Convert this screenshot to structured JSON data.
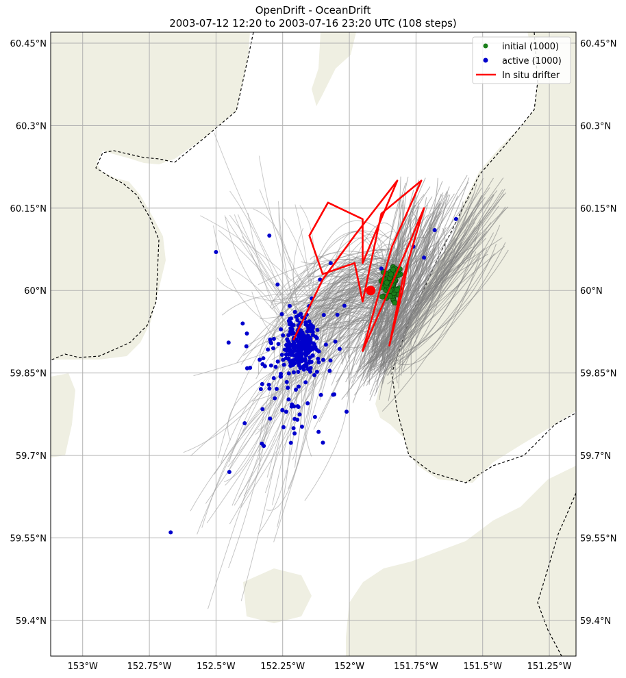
{
  "title": {
    "line1": "OpenDrift - OceanDrift",
    "line2": "2003-07-12 12:20 to 2003-07-16 23:20 UTC (108 steps)"
  },
  "map": {
    "lon_range": [
      -153.12,
      -151.15
    ],
    "lat_range": [
      59.335,
      60.47
    ],
    "land_color": "#efefe2",
    "grid_color": "#b0b0b0",
    "coastline_style": "dashed",
    "lon_ticks": [
      {
        "value": -153.0,
        "label": "153°W"
      },
      {
        "value": -152.75,
        "label": "152.75°W"
      },
      {
        "value": -152.5,
        "label": "152.5°W"
      },
      {
        "value": -152.25,
        "label": "152.25°W"
      },
      {
        "value": -152.0,
        "label": "152°W"
      },
      {
        "value": -151.75,
        "label": "151.75°W"
      },
      {
        "value": -151.5,
        "label": "151.5°W"
      },
      {
        "value": -151.25,
        "label": "151.25°W"
      }
    ],
    "lat_ticks": [
      {
        "value": 60.45,
        "label": "60.45°N"
      },
      {
        "value": 60.3,
        "label": "60.3°N"
      },
      {
        "value": 60.15,
        "label": "60.15°N"
      },
      {
        "value": 60.0,
        "label": "60°N"
      },
      {
        "value": 59.85,
        "label": "59.85°N"
      },
      {
        "value": 59.7,
        "label": "59.7°N"
      },
      {
        "value": 59.55,
        "label": "59.55°N"
      },
      {
        "value": 59.4,
        "label": "59.4°N"
      }
    ]
  },
  "legend": {
    "position": "top-right",
    "items": [
      {
        "label": "initial (1000)",
        "kind": "dot",
        "color": "#1a7f1a"
      },
      {
        "label": "active (1000)",
        "kind": "dot",
        "color": "#0000cc"
      },
      {
        "label": "In situ drifter",
        "kind": "line",
        "color": "#ff0000"
      }
    ]
  },
  "chart_data": {
    "type": "scatter",
    "title": "OpenDrift - OceanDrift",
    "subtitle": "2003-07-12 12:20 to 2003-07-16 23:20 UTC (108 steps)",
    "series": [
      {
        "name": "initial (1000)",
        "color": "#1a7f1a",
        "center": [
          -151.84,
          60.01
        ],
        "spread": [
          0.03,
          0.03
        ]
      },
      {
        "name": "active (1000)",
        "color": "#0000cc",
        "center": [
          -152.18,
          59.9
        ],
        "spread": [
          0.14,
          0.12
        ]
      },
      {
        "name": "In situ drifter",
        "color": "#ff0000",
        "path": [
          [
            -152.21,
            59.91
          ],
          [
            -152.1,
            60.02
          ],
          [
            -151.98,
            60.1
          ],
          [
            -151.82,
            60.2
          ],
          [
            -151.95,
            60.05
          ],
          [
            -151.95,
            60.13
          ],
          [
            -152.08,
            60.16
          ],
          [
            -152.15,
            60.1
          ],
          [
            -152.1,
            60.03
          ],
          [
            -151.98,
            60.05
          ],
          [
            -151.95,
            59.98
          ],
          [
            -151.88,
            60.14
          ],
          [
            -151.73,
            60.2
          ],
          [
            -151.84,
            60.08
          ],
          [
            -151.95,
            59.89
          ],
          [
            -151.78,
            60.08
          ],
          [
            -151.72,
            60.15
          ],
          [
            -151.8,
            60.02
          ],
          [
            -151.85,
            59.9
          ],
          [
            -151.8,
            60.0
          ],
          [
            -151.78,
            60.05
          ]
        ],
        "end_marker": [
          -151.92,
          60.0
        ]
      }
    ]
  }
}
